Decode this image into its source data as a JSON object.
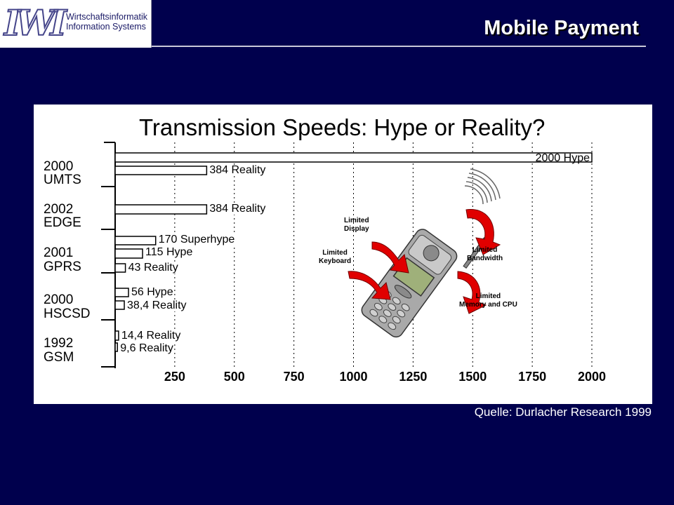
{
  "slide": {
    "title": "Mobile Payment",
    "logo": {
      "mark": "IWI",
      "line1": "Wirtschaftsinformatik",
      "line2": "Information Systems"
    },
    "source": "Quelle: Durlacher Research 1999"
  },
  "chart_data": {
    "type": "bar",
    "orientation": "horizontal",
    "title": "Transmission Speeds: Hype or Reality?",
    "xlim": [
      0,
      2000
    ],
    "xticks": [
      "250",
      "500",
      "750",
      "1000",
      "1250",
      "1500",
      "1750",
      "2000"
    ],
    "grid": "vertical dotted",
    "categories": [
      {
        "year": "2000",
        "name": "UMTS"
      },
      {
        "year": "2002",
        "name": "EDGE"
      },
      {
        "year": "2001",
        "name": "GPRS"
      },
      {
        "year": "2000",
        "name": "HSCSD"
      },
      {
        "year": "1992",
        "name": "GSM"
      }
    ],
    "bars": [
      {
        "category": "UMTS",
        "value": 2000,
        "label": "2000 Hype"
      },
      {
        "category": "UMTS",
        "value": 384,
        "label": "384 Reality"
      },
      {
        "category": "EDGE",
        "value": 384,
        "label": "384 Reality"
      },
      {
        "category": "GPRS",
        "value": 170,
        "label": "170 Superhype"
      },
      {
        "category": "GPRS",
        "value": 115,
        "label": "115 Hype"
      },
      {
        "category": "GPRS",
        "value": 43,
        "label": "43 Reality"
      },
      {
        "category": "HSCSD",
        "value": 56,
        "label": "56 Hype"
      },
      {
        "category": "HSCSD",
        "value": 38.4,
        "label": "38,4 Reality"
      },
      {
        "category": "GSM",
        "value": 14.4,
        "label": "14,4 Reality"
      },
      {
        "category": "GSM",
        "value": 9.6,
        "label": "9,6 Reality"
      }
    ]
  },
  "phone_graphic": {
    "icon": "mobile-phone-icon",
    "arrow_color": "#e00000",
    "labels": {
      "display": [
        "Limited",
        "Display"
      ],
      "keyboard": [
        "Limited",
        "Keyboard"
      ],
      "bandwidth": [
        "Limited",
        "Bandwidth"
      ],
      "memory": [
        "Limited",
        "Memory and CPU"
      ]
    }
  }
}
